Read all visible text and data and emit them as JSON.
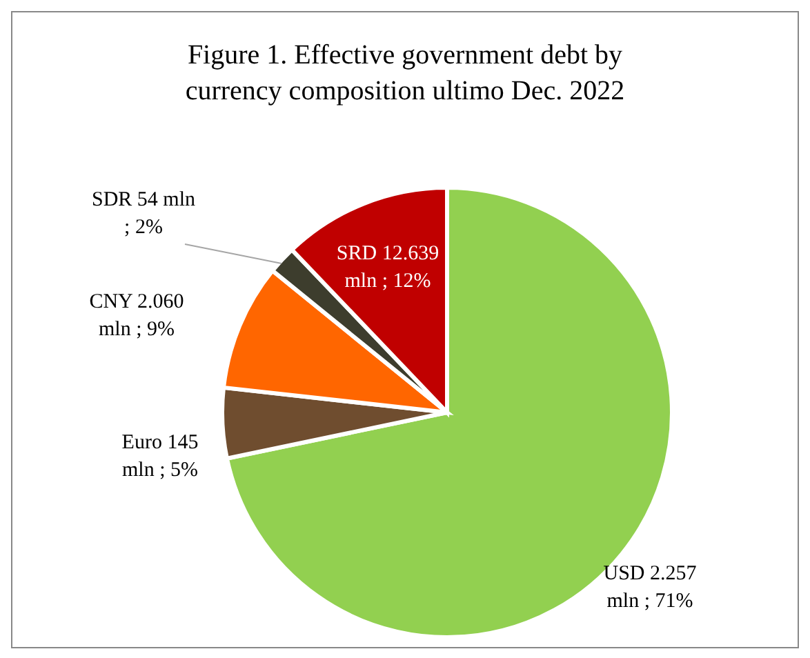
{
  "chart_data": {
    "type": "pie",
    "title": "Figure 1. Effective government debt by currency composition ultimo Dec. 2022",
    "categories": [
      "USD",
      "Euro",
      "CNY",
      "SDR",
      "SRD"
    ],
    "values": [
      71,
      5,
      9,
      2,
      12
    ],
    "value_labels": [
      "2.257 mln ; 71%",
      "145 mln ; 5%",
      "2.060 mln ; 9%",
      "54 mln ; 2%",
      "12.639 mln ; 12%"
    ],
    "colors": [
      "#92d050",
      "#6f4d2f",
      "#ff6600",
      "#3d3d2d",
      "#c00000"
    ],
    "legend": false
  }
}
